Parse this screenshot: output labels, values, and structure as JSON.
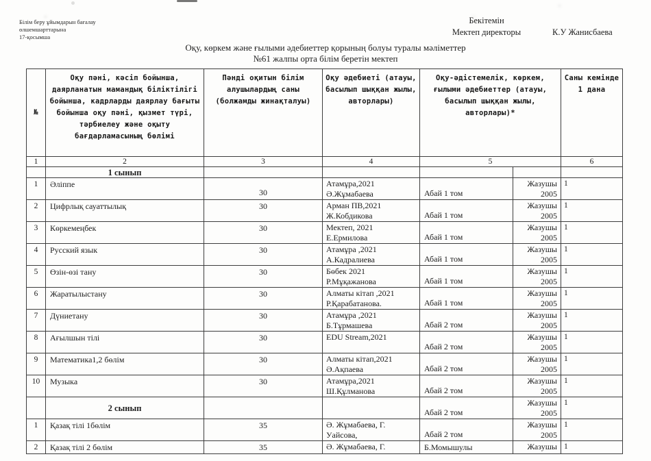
{
  "page": {
    "corner_note": [
      "Білім беру ұйымдарын бағалау",
      "өлшемшарттарына",
      "17-қосымша"
    ],
    "approval": {
      "line1": "Бекітемін",
      "line2": "Мектеп директоры",
      "name": "К.У Жанисбаева"
    },
    "title_line1": "Оқу, көркем және ғылыми әдебиеттер қорының болуы туралы мәліметтер",
    "title_line2": "№61 жалпы орта білім беретін мектеп"
  },
  "table": {
    "headers": {
      "c1": "№",
      "c2": "Оқу пәні, кәсіп бойынша, даярланатын мамандық біліктілігі бойынша, кадрларды даярлау бағыты бойынша оқу пәні, қызмет түрі, тәрбиелеу және оқыту бағдарламасының бөлімі",
      "c3": "Пәнді оқитын білім алушылардың саны (болжамды жинақталуы)",
      "c4": "Оқу әдебиеті (атауы, басылып шыққан жылы, авторлары)",
      "c5": "Оқу-әдістемелік, көркем, ғылыми әдебиеттер (атауы, басылып шыққан жылы, авторлары)*",
      "c6": "Саны кемінде 1 дана"
    },
    "col_numbers": [
      "1",
      "2",
      "3",
      "4",
      "5",
      "6"
    ],
    "rows": [
      {
        "type": "section",
        "label": "1 сынып",
        "thin": true,
        "extra": "",
        "pub": [],
        "qty": ""
      },
      {
        "type": "data",
        "num": "1",
        "subject": "Әліппе",
        "count": "30",
        "count_low": true,
        "book": [
          "Атамұра,2021",
          "Ә.Жұмабаева"
        ],
        "extra": "Абай 1 том",
        "pub": [
          "Жазушы",
          "2005"
        ],
        "qty": "1"
      },
      {
        "type": "data",
        "num": "2",
        "subject": "Цифрлық сауаттылық",
        "count": "30",
        "book": [
          "Арман ПВ,2021",
          "Ж.Кобдикова"
        ],
        "extra": "Абай 1 том",
        "pub": [
          "Жазушы",
          "2005"
        ],
        "qty": "1"
      },
      {
        "type": "data",
        "num": "3",
        "subject": "Көркемеңбек",
        "count": "30",
        "book": [
          "Мектеп, 2021",
          "Е.Ермилова"
        ],
        "extra": "Абай 1 том",
        "pub": [
          "Жазушы",
          "2005"
        ],
        "qty": "1"
      },
      {
        "type": "data",
        "num": "4",
        "subject": "Русский язык",
        "count": "30",
        "book": [
          "Атамұра ,2021",
          "А.Кадралиева"
        ],
        "extra": "Абай 1 том",
        "pub": [
          "Жазушы",
          "2005"
        ],
        "qty": "1"
      },
      {
        "type": "data",
        "num": "5",
        "subject": "Өзін-өзі тану",
        "count": "30",
        "book": [
          "Бөбек 2021",
          "Р.Мұқажанова"
        ],
        "extra": "Абай 1 том",
        "pub": [
          "Жазушы",
          "2005"
        ],
        "qty": "1"
      },
      {
        "type": "data",
        "num": "6",
        "subject": "Жаратылыстану",
        "count": "30",
        "book": [
          "Алматы кітап ,2021",
          "Р.Қарабатанова."
        ],
        "extra": "Абай 1 том",
        "pub": [
          "Жазушы",
          "2005"
        ],
        "qty": "1"
      },
      {
        "type": "data",
        "num": "7",
        "subject": "Дүниетану",
        "count": "30",
        "book": [
          "Атамұра ,2021",
          "Б.Тұрмашева"
        ],
        "extra": "Абай 2 том",
        "pub": [
          "Жазушы",
          "2005"
        ],
        "qty": "1"
      },
      {
        "type": "data",
        "num": "8",
        "subject": "Ағылшын тілі",
        "count": "30",
        "book": [
          "EDU Stream,2021"
        ],
        "extra": "Абай 2 том",
        "pub": [
          "Жазушы",
          "2005"
        ],
        "qty": "1"
      },
      {
        "type": "data",
        "num": "9",
        "subject": "Математика1,2 бөлім",
        "count": "30",
        "book": [
          "Алматы кітап,2021",
          "Ә.Ақпаева"
        ],
        "extra": "Абай 2 том",
        "pub": [
          "Жазушы",
          "2005"
        ],
        "qty": "1"
      },
      {
        "type": "data",
        "num": "10",
        "subject": "Музыка",
        "count": "30",
        "book": [
          "Атамұра,2021",
          "Ш.Құлманова"
        ],
        "extra": "Абай 2 том",
        "pub": [
          "Жазушы",
          "2005"
        ],
        "qty": "1"
      },
      {
        "type": "section",
        "label": "2 сынып",
        "extra": "Абай 2 том",
        "pub": [
          "Жазушы",
          "2005"
        ],
        "qty": "1"
      },
      {
        "type": "data",
        "num": "1",
        "subject": "Қазақ тілі 1бөлім",
        "count": "35",
        "book": [
          "Ә. Жұмабаева, Г.",
          "Уайсова,"
        ],
        "extra": "Абай 2 том",
        "pub": [
          "Жазушы",
          "2005"
        ],
        "qty": "1"
      },
      {
        "type": "data",
        "num": "2",
        "subject": "Қазақ тілі 2 бөлім",
        "count": "35",
        "short": true,
        "book": [
          "Ә. Жұмабаева, Г."
        ],
        "extra": "Б.Момышулы",
        "pub": [
          "Жазушы"
        ],
        "qty": "1"
      }
    ]
  }
}
